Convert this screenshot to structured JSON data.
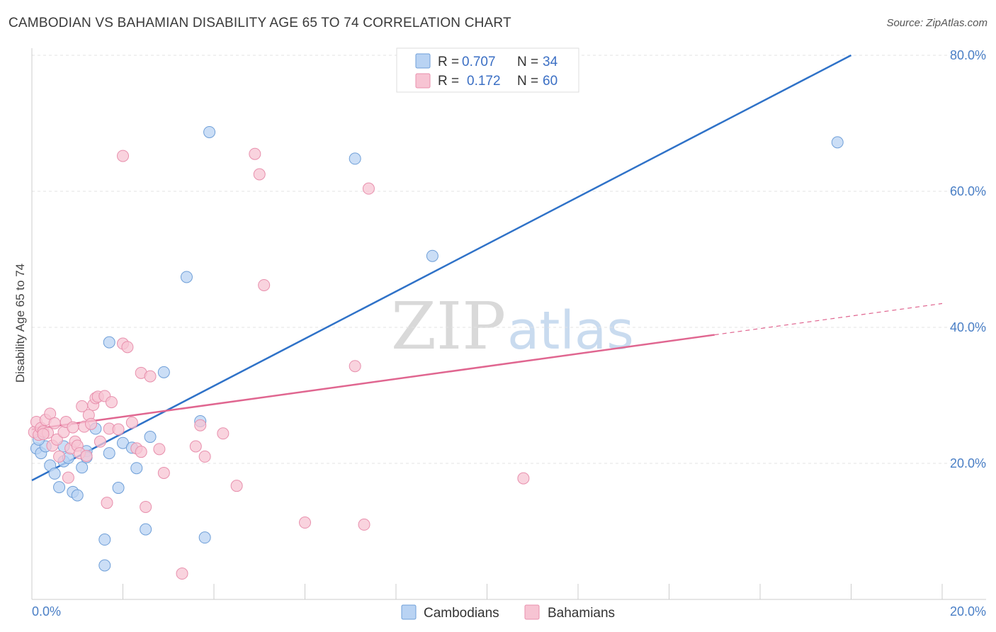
{
  "title": "CAMBODIAN VS BAHAMIAN DISABILITY AGE 65 TO 74 CORRELATION CHART",
  "source": "Source: ZipAtlas.com",
  "watermark": {
    "zip": "ZIP",
    "atlas": "atlas"
  },
  "colors": {
    "blue_fill": "#b9d3f3",
    "blue_stroke": "#6f9fd8",
    "blue_line": "#2f72c8",
    "pink_fill": "#f7c4d3",
    "pink_stroke": "#e890ad",
    "pink_line": "#e06690",
    "tick_text": "#4a7fc6",
    "grid": "#e3e3e3"
  },
  "legend": {
    "rows": [
      {
        "series": "Cambodians",
        "r_label": "R = ",
        "r_value": "0.707",
        "n_label": "N = ",
        "n_value": "34"
      },
      {
        "series": "Bahamians",
        "r_label": "R = ",
        "r_value": "0.172",
        "n_label": "N = ",
        "n_value": "60"
      }
    ]
  },
  "bottom_legend": [
    "Cambodians",
    "Bahamians"
  ],
  "chart_data": {
    "type": "scatter",
    "title": "CAMBODIAN VS BAHAMIAN DISABILITY AGE 65 TO 74 CORRELATION CHART",
    "xlabel": "",
    "ylabel": "Disability Age 65 to 74",
    "xlim": [
      0,
      20
    ],
    "ylim": [
      0,
      80
    ],
    "x_tick_labels": [
      "0.0%",
      "20.0%"
    ],
    "y_ticks": [
      20,
      40,
      60,
      80
    ],
    "y_tick_labels": [
      "20.0%",
      "40.0%",
      "60.0%",
      "80.0%"
    ],
    "grid": true,
    "series": [
      {
        "name": "Cambodians",
        "r": 0.707,
        "n": 34,
        "points": [
          [
            0.1,
            22.2
          ],
          [
            0.2,
            21.5
          ],
          [
            0.3,
            22.5
          ],
          [
            0.4,
            19.7
          ],
          [
            0.5,
            18.5
          ],
          [
            0.6,
            16.5
          ],
          [
            0.7,
            20.3
          ],
          [
            0.7,
            22.5
          ],
          [
            0.8,
            20.8
          ],
          [
            0.9,
            15.8
          ],
          [
            1.0,
            15.3
          ],
          [
            1.1,
            19.4
          ],
          [
            1.2,
            21.8
          ],
          [
            1.2,
            20.9
          ],
          [
            1.4,
            25.1
          ],
          [
            1.6,
            8.8
          ],
          [
            1.6,
            5.0
          ],
          [
            1.7,
            21.5
          ],
          [
            1.7,
            37.8
          ],
          [
            1.9,
            16.4
          ],
          [
            2.0,
            23.0
          ],
          [
            2.2,
            22.3
          ],
          [
            2.3,
            19.3
          ],
          [
            2.5,
            10.3
          ],
          [
            2.6,
            23.9
          ],
          [
            2.9,
            33.4
          ],
          [
            3.4,
            47.4
          ],
          [
            3.7,
            26.2
          ],
          [
            3.8,
            9.1
          ],
          [
            3.9,
            68.7
          ],
          [
            7.1,
            64.8
          ],
          [
            8.8,
            50.5
          ],
          [
            17.7,
            67.2
          ],
          [
            0.15,
            23.5
          ]
        ]
      },
      {
        "name": "Bahamians",
        "r": 0.172,
        "n": 60,
        "points": [
          [
            0.05,
            24.6
          ],
          [
            0.1,
            26.1
          ],
          [
            0.15,
            24.2
          ],
          [
            0.2,
            25.2
          ],
          [
            0.25,
            24.7
          ],
          [
            0.3,
            26.4
          ],
          [
            0.35,
            24.5
          ],
          [
            0.4,
            27.3
          ],
          [
            0.45,
            22.6
          ],
          [
            0.5,
            25.9
          ],
          [
            0.55,
            23.5
          ],
          [
            0.6,
            21.0
          ],
          [
            0.7,
            24.6
          ],
          [
            0.75,
            26.1
          ],
          [
            0.8,
            17.9
          ],
          [
            0.85,
            22.2
          ],
          [
            0.9,
            25.3
          ],
          [
            0.95,
            23.2
          ],
          [
            1.0,
            22.6
          ],
          [
            1.05,
            21.5
          ],
          [
            1.1,
            28.4
          ],
          [
            1.15,
            25.4
          ],
          [
            1.2,
            21.1
          ],
          [
            1.25,
            27.1
          ],
          [
            1.3,
            25.8
          ],
          [
            1.35,
            28.6
          ],
          [
            1.4,
            29.6
          ],
          [
            1.45,
            29.8
          ],
          [
            1.5,
            23.2
          ],
          [
            1.6,
            29.9
          ],
          [
            1.65,
            14.2
          ],
          [
            1.7,
            25.1
          ],
          [
            1.75,
            29.0
          ],
          [
            1.9,
            25.0
          ],
          [
            2.0,
            65.2
          ],
          [
            2.0,
            37.6
          ],
          [
            2.1,
            37.1
          ],
          [
            2.2,
            26.0
          ],
          [
            2.3,
            22.2
          ],
          [
            2.4,
            21.7
          ],
          [
            2.4,
            33.3
          ],
          [
            2.5,
            13.6
          ],
          [
            2.6,
            32.8
          ],
          [
            2.8,
            22.1
          ],
          [
            2.9,
            18.6
          ],
          [
            3.3,
            3.8
          ],
          [
            3.6,
            22.5
          ],
          [
            3.7,
            25.6
          ],
          [
            3.8,
            21.0
          ],
          [
            4.2,
            24.4
          ],
          [
            4.5,
            16.7
          ],
          [
            4.9,
            65.5
          ],
          [
            5.0,
            62.5
          ],
          [
            5.1,
            46.2
          ],
          [
            6.0,
            11.3
          ],
          [
            7.1,
            34.3
          ],
          [
            7.3,
            11.0
          ],
          [
            7.4,
            60.4
          ],
          [
            10.8,
            17.8
          ],
          [
            0.25,
            24.3
          ]
        ]
      }
    ],
    "trend_lines": [
      {
        "series": "Cambodians",
        "x": [
          0,
          18.0
        ],
        "y": [
          17.5,
          80.0
        ]
      },
      {
        "series": "Bahamians",
        "x": [
          0,
          15.0
        ],
        "y": [
          25.0,
          38.9
        ],
        "dashed_extension": {
          "x": [
            15.0,
            20.0
          ],
          "y": [
            38.9,
            43.5
          ]
        }
      }
    ]
  }
}
